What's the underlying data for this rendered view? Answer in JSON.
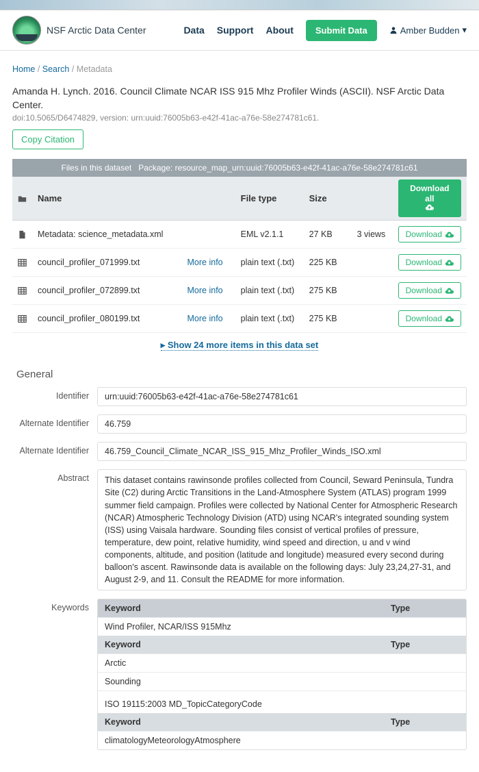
{
  "site": {
    "name": "NSF Arctic Data Center"
  },
  "nav": {
    "data": "Data",
    "support": "Support",
    "about": "About",
    "submit": "Submit Data"
  },
  "user": {
    "name": "Amber Budden",
    "caret": "▾"
  },
  "breadcrumb": {
    "home": "Home",
    "search": "Search",
    "current": "Metadata"
  },
  "citation": {
    "text": "Amanda H. Lynch. 2016. Council Climate NCAR ISS 915 Mhz Profiler Winds (ASCII). NSF Arctic Data Center.",
    "doi": "doi:10.5065/D6474829, version: urn:uuid:76005b63-e42f-41ac-a76e-58e274781c61."
  },
  "buttons": {
    "copy": "Copy Citation",
    "download_all": "Download all",
    "download": "Download",
    "more_info": "More info"
  },
  "files": {
    "header_label": "Files in this dataset",
    "package_label": "Package: resource_map_urn:uuid:76005b63-e42f-41ac-a76e-58e274781c61",
    "columns": {
      "name": "Name",
      "type": "File type",
      "size": "Size"
    },
    "rows": [
      {
        "icon": "file",
        "name": "Metadata: science_metadata.xml",
        "type": "EML v2.1.1",
        "size": "27 KB",
        "views": "3 views",
        "more": false
      },
      {
        "icon": "table",
        "name": "council_profiler_071999.txt",
        "type": "plain text (.txt)",
        "size": "225 KB",
        "views": "",
        "more": true
      },
      {
        "icon": "table",
        "name": "council_profiler_072899.txt",
        "type": "plain text (.txt)",
        "size": "275 KB",
        "views": "",
        "more": true
      },
      {
        "icon": "table",
        "name": "council_profiler_080199.txt",
        "type": "plain text (.txt)",
        "size": "275 KB",
        "views": "",
        "more": true
      }
    ],
    "show_more": "▸ Show 24 more items in this data set"
  },
  "general": {
    "heading": "General",
    "identifier_label": "Identifier",
    "identifier": "urn:uuid:76005b63-e42f-41ac-a76e-58e274781c61",
    "alt_id_label": "Alternate Identifier",
    "alt_id_1": "46.759",
    "alt_id_2": "46.759_Council_Climate_NCAR_ISS_915_Mhz_Profiler_Winds_ISO.xml",
    "abstract_label": "Abstract",
    "abstract": "This dataset contains rawinsonde profiles collected from Council, Seward Peninsula, Tundra Site (C2) during Arctic Transitions in the Land-Atmosphere System (ATLAS) program 1999 summer field campaign. Profiles were collected by National Center for Atmospheric Research (NCAR) Atmospheric Technology Division (ATD) using NCAR's integrated sounding system (ISS) using Vaisala hardware. Sounding files consist of vertical profiles of pressure, temperature, dew point, relative humidity, wind speed and direction, u and v wind components, altitude, and position (latitude and longitude) measured every second during balloon's ascent. Rawinsonde data is available on the following days: July 23,24,27-31, and August 2-9, and 11. Consult the README for more information.",
    "keywords_label": "Keywords",
    "kw_col_keyword": "Keyword",
    "kw_col_type": "Type",
    "kw_group1": "Wind Profiler, NCAR/ISS 915Mhz",
    "kw_group2a": "Arctic",
    "kw_group2b": "Sounding",
    "kw_scheme": "ISO 19115:2003 MD_TopicCategoryCode",
    "kw_group3": "climatologyMeteorologyAtmosphere"
  }
}
